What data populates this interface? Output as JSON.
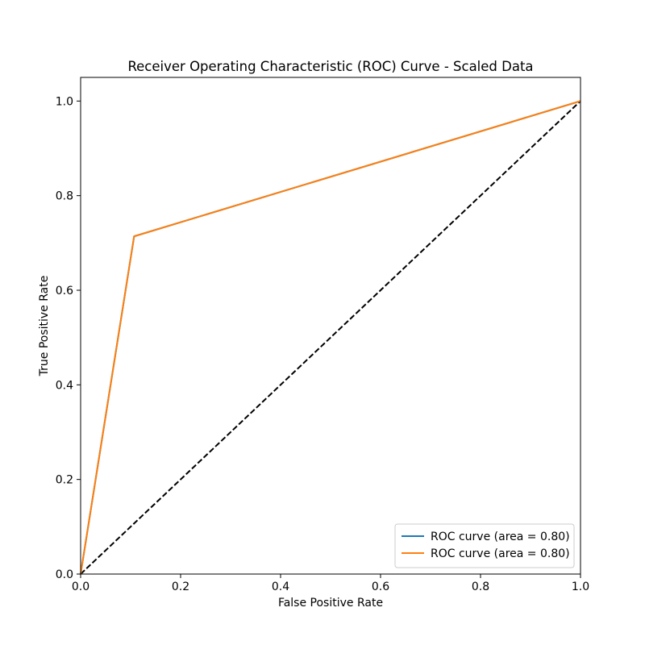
{
  "chart_data": {
    "type": "line",
    "title": "Receiver Operating Characteristic (ROC) Curve - Scaled Data",
    "xlabel": "False Positive Rate",
    "ylabel": "True Positive Rate",
    "xlim": [
      0.0,
      1.0
    ],
    "ylim": [
      0.0,
      1.05
    ],
    "x_ticks": [
      0.0,
      0.2,
      0.4,
      0.6,
      0.8,
      1.0
    ],
    "x_tick_labels": [
      "0.0",
      "0.2",
      "0.4",
      "0.6",
      "0.8",
      "1.0"
    ],
    "y_ticks": [
      0.0,
      0.2,
      0.4,
      0.6,
      0.8,
      1.0
    ],
    "y_tick_labels": [
      "0.0",
      "0.2",
      "0.4",
      "0.6",
      "0.8",
      "1.0"
    ],
    "grid": false,
    "legend_position": "lower-right",
    "series": [
      {
        "name": "ROC curve (area = 0.80)",
        "color": "#1f77b4",
        "x": [
          0.0,
          0.107,
          1.0
        ],
        "y": [
          0.0,
          0.714,
          1.0
        ]
      },
      {
        "name": "ROC curve (area = 0.80)",
        "color": "#ff7f0e",
        "x": [
          0.0,
          0.107,
          1.0
        ],
        "y": [
          0.0,
          0.714,
          1.0
        ]
      }
    ],
    "reference_line": {
      "x": [
        0.0,
        1.0
      ],
      "y": [
        0.0,
        1.0
      ],
      "color": "#000000",
      "style": "dashed"
    }
  }
}
